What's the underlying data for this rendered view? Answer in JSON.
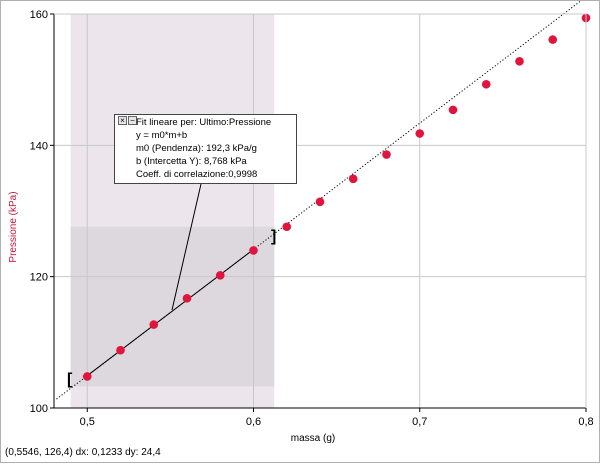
{
  "chart_data": {
    "type": "scatter",
    "title": "",
    "xlabel": "massa (g)",
    "ylabel": "Pressione (kPa)",
    "xlim": [
      0.48,
      0.8
    ],
    "ylim": [
      100,
      160
    ],
    "x_ticks": [
      0.5,
      0.6,
      0.7,
      0.8
    ],
    "y_ticks": [
      100,
      120,
      140,
      160
    ],
    "x_tick_labels": [
      "0,5",
      "0,6",
      "0,7",
      "0,8"
    ],
    "y_tick_labels": [
      "100",
      "120",
      "140",
      "160"
    ],
    "grid": true,
    "series": [
      {
        "name": "Ultimo:Pressione",
        "color": "#e0143c",
        "x": [
          0.5,
          0.52,
          0.54,
          0.56,
          0.58,
          0.6,
          0.62,
          0.64,
          0.66,
          0.68,
          0.7,
          0.72,
          0.74,
          0.76,
          0.78,
          0.8
        ],
        "y": [
          104.8,
          108.8,
          112.7,
          116.7,
          120.2,
          124.0,
          127.6,
          131.4,
          134.9,
          138.6,
          141.8,
          145.4,
          149.3,
          152.8,
          156.1,
          159.4
        ]
      }
    ],
    "fit": {
      "slope": 192.3,
      "intercept": 8.768,
      "x_range": [
        0.5,
        0.6
      ]
    },
    "selection": {
      "x_range": [
        0.49,
        0.6125
      ],
      "y_range": [
        103.3,
        127.6
      ]
    }
  },
  "fit_box": {
    "line1": "Fit lineare per:  Ultimo:Pressione",
    "line2": "y = m0*m+b",
    "line3": "m0 (Pendenza): 192,3 kPa/g",
    "line4": "b (Intercetta Y): 8,768 kPa",
    "line5": "Coeff. di correlazione:0,9998",
    "close_glyph": "×",
    "minimize_glyph": "−"
  },
  "status": {
    "text": "(0,5546, 126,4)  dx: 0,1233  dy: 24,4"
  },
  "brackets": {
    "left": "[",
    "right": "]"
  },
  "colors": {
    "point": "#e0143c",
    "ylabel": "#c0143c",
    "shade": "#ece6ec",
    "selection": "#dcd8de"
  }
}
